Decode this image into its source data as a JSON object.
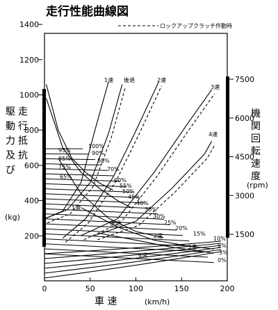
{
  "chart_data": {
    "type": "line",
    "title": "走行性能曲線図",
    "legend": {
      "dashed_label": "ロックアップクラッチ作動時",
      "placement": "top-right"
    },
    "xlabel": "車 速",
    "xunit": "(km/h)",
    "xlim": [
      0,
      200
    ],
    "xticks": [
      "0",
      "50",
      "100",
      "150",
      "200"
    ],
    "left_ylabel_chars": [
      "駆",
      "動",
      "力",
      "及",
      "び",
      "走",
      "行",
      "抵",
      "抗"
    ],
    "left_yunit": "(kg)",
    "left_ylim": [
      0,
      1500
    ],
    "left_yticks": [
      "200",
      "400",
      "600",
      "800",
      "1000",
      "1200",
      "1400"
    ],
    "right_ylabel_chars": [
      "機",
      "関",
      "回",
      "転",
      "速",
      "度"
    ],
    "right_yunit": "(rpm)",
    "right_ylim": [
      0,
      7500
    ],
    "right_yticks": [
      "1500",
      "3000",
      "4500",
      "6000",
      "7500"
    ],
    "gear_labels": [
      "1速",
      "後退",
      "2速",
      "3速",
      "4速",
      "1速",
      "後退",
      "2速",
      "3速",
      "4速"
    ],
    "grade_labels": [
      "95%",
      "100%",
      "85%",
      "90%",
      "75%",
      "80%",
      "65%",
      "70%",
      "60%",
      "55%",
      "50%",
      "45%",
      "40%",
      "35%",
      "30%",
      "25%",
      "20%",
      "15%",
      "10%",
      "5%",
      "3%",
      "0%"
    ],
    "series": [
      {
        "type": "engine_speed_rpm",
        "label": "1速",
        "x": [
          0,
          20,
          40,
          55,
          70
        ],
        "values": [
          2100,
          2400,
          3500,
          5500,
          7400
        ]
      },
      {
        "type": "engine_speed_rpm",
        "label": "後退",
        "x": [
          0,
          25,
          50,
          70,
          85
        ],
        "values": [
          2100,
          2450,
          3500,
          5400,
          7300
        ]
      },
      {
        "type": "engine_speed_rpm",
        "label": "2速",
        "x": [
          20,
          45,
          75,
          100,
          125
        ],
        "values": [
          1350,
          2100,
          3700,
          5500,
          7400
        ]
      },
      {
        "type": "engine_speed_rpm",
        "label": "3速",
        "x": [
          40,
          80,
          120,
          155,
          183
        ],
        "values": [
          1450,
          2100,
          3900,
          5700,
          7100
        ]
      },
      {
        "type": "engine_speed_rpm",
        "label": "4速",
        "x": [
          55,
          100,
          140,
          175,
          183
        ],
        "values": [
          1450,
          2000,
          3300,
          4600,
          5100
        ]
      },
      {
        "type": "tractive_force_kg",
        "label": "1速",
        "x": [
          2,
          15,
          30,
          45,
          60,
          75
        ],
        "values": [
          1060,
          800,
          640,
          560,
          500,
          460
        ]
      },
      {
        "type": "tractive_force_kg",
        "label": "後退",
        "x": [
          2,
          20,
          40,
          60,
          80,
          95
        ],
        "values": [
          980,
          700,
          560,
          470,
          400,
          360
        ]
      },
      {
        "type": "tractive_force_kg",
        "label": "2速",
        "x": [
          15,
          40,
          70,
          100,
          125,
          130
        ],
        "values": [
          640,
          440,
          300,
          225,
          195,
          190
        ]
      },
      {
        "type": "tractive_force_kg",
        "label": "3速",
        "x": [
          40,
          80,
          120,
          160,
          185
        ],
        "values": [
          360,
          250,
          175,
          140,
          125
        ]
      },
      {
        "type": "tractive_force_kg",
        "label": "4速",
        "x": [
          60,
          100,
          140,
          175,
          185
        ],
        "values": [
          215,
          175,
          135,
          110,
          100
        ]
      }
    ]
  }
}
